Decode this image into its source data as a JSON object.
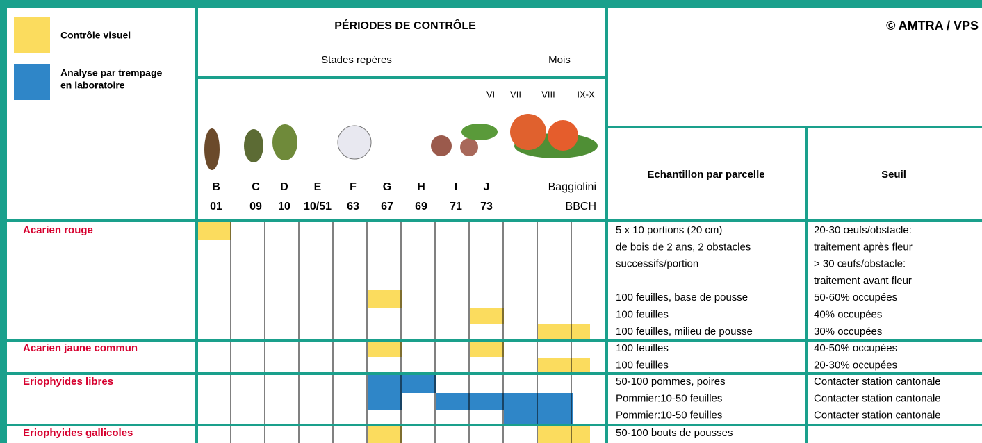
{
  "legend": [
    {
      "lines": [
        "Contrôle visuel"
      ]
    },
    {
      "lines": [
        "Analyse par trempage",
        "en laboratoire"
      ]
    }
  ],
  "header": {
    "title": "PÉRIODES DE CONTRÔLE",
    "stades": "Stades repères",
    "mois": "Mois",
    "copyright": "© AMTRA / VPS",
    "sample_header": "Echantillon par parcelle",
    "threshold_header": "Seuil",
    "months": [
      "VI",
      "VII",
      "VIII",
      "IX-X"
    ],
    "stages": [
      {
        "letter": "B",
        "bbch": "01"
      },
      {
        "letter": "C",
        "bbch": "09"
      },
      {
        "letter": "D",
        "bbch": "10"
      },
      {
        "letter": "E",
        "bbch": "10/51"
      },
      {
        "letter": "F",
        "bbch": "63"
      },
      {
        "letter": "G",
        "bbch": "67"
      },
      {
        "letter": "H",
        "bbch": "69"
      },
      {
        "letter": "I",
        "bbch": "71"
      },
      {
        "letter": "J",
        "bbch": "73"
      }
    ],
    "baggiolini": "Baggiolini",
    "bbch": "BBCH"
  },
  "rows": [
    {
      "name": "Acarien rouge",
      "samples": [
        "5 x 10 portions (20 cm)",
        "de bois de 2 ans, 2 obstacles",
        "successifs/portion",
        "100 feuilles, base de pousse",
        "100 feuilles",
        "100 feuilles, milieu de pousse"
      ],
      "thresholds": [
        "20-30 œufs/obstacle:",
        "traitement après fleur",
        "> 30 œufs/obstacle:",
        "traitement avant fleur",
        "50-60% occupées",
        "40% occupées",
        "30% occupées"
      ]
    },
    {
      "name": "Acarien jaune commun",
      "samples": [
        "100 feuilles",
        "100 feuilles"
      ],
      "thresholds": [
        "40-50% occupées",
        "20-30% occupées"
      ]
    },
    {
      "name": "Eriophyides libres",
      "samples": [
        "50-100 pommes, poires",
        "Pommier:10-50 feuilles",
        "Pommier:10-50 feuilles"
      ],
      "thresholds": [
        "Contacter station cantonale",
        "Contacter station cantonale",
        "Contacter station cantonale"
      ]
    },
    {
      "name": "Eriophyides gallicoles",
      "samples": [
        "50-100 bouts de pousses"
      ],
      "thresholds": []
    }
  ]
}
